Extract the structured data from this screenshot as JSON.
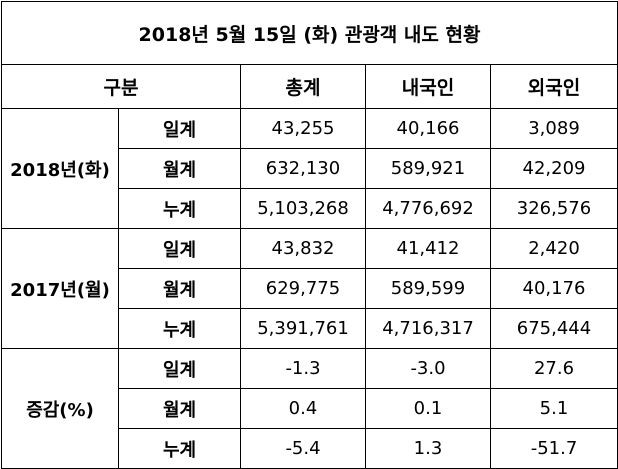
{
  "title": "2018년 5월 15일 (화) 관광객 내도 현황",
  "header": [
    "구분",
    "총계",
    "내국인",
    "외국인"
  ],
  "groups": [
    {
      "label": "2018년(화)",
      "rows": [
        {
          "label": "일계",
          "values": [
            "43,255",
            "40,166",
            "3,089"
          ]
        },
        {
          "label": "월계",
          "values": [
            "632,130",
            "589,921",
            "42,209"
          ]
        },
        {
          "label": "누계",
          "values": [
            "5,103,268",
            "4,776,692",
            "326,576"
          ]
        }
      ]
    },
    {
      "label": "2017년(월)",
      "rows": [
        {
          "label": "일계",
          "values": [
            "43,832",
            "41,412",
            "2,420"
          ]
        },
        {
          "label": "월계",
          "values": [
            "629,775",
            "589,599",
            "40,176"
          ]
        },
        {
          "label": "누계",
          "values": [
            "5,391,761",
            "4,716,317",
            "675,444"
          ]
        }
      ]
    },
    {
      "label": "증감(%)",
      "rows": [
        {
          "label": "일계",
          "values": [
            "-1.3",
            "-3.0",
            "27.6"
          ]
        },
        {
          "label": "월계",
          "values": [
            "0.4",
            "0.1",
            "5.1"
          ]
        },
        {
          "label": "누계",
          "values": [
            "-5.4",
            "1.3",
            "-51.7"
          ]
        }
      ]
    }
  ]
}
